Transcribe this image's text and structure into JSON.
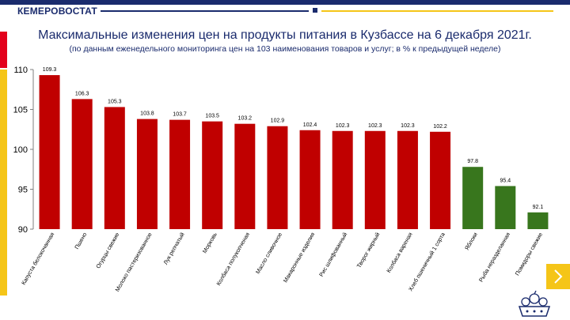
{
  "header": {
    "brand": "КЕМЕРОВОСТАТ",
    "colors": {
      "navy": "#1a2b6d",
      "yellow": "#f5c518",
      "red": "#e3001b"
    }
  },
  "title": "Максимальные изменения цен на продукты питания в Кузбассе на 6 декабря 2021г.",
  "subtitle": "(по данным еженедельного мониторинга цен на 103 наименования товаров и услуг; в % к предыдущей неделе)",
  "chart_data": {
    "type": "bar",
    "categories": [
      "Капуста белокочанная",
      "Пшено",
      "Огурцы свежие",
      "Молоко пастеризованное",
      "Лук репчатый",
      "Морковь",
      "Колбаса полукопченая",
      "Масло сливочное",
      "Макаронные изделия",
      "Рис шлифованный",
      "Творог жирный",
      "Колбаса вареная",
      "Хлеб пшеничный 1 сорта",
      "Яблоки",
      "Рыба неразделанная",
      "Помидоры свежие"
    ],
    "values": [
      109.3,
      106.3,
      105.3,
      103.8,
      103.7,
      103.5,
      103.2,
      102.9,
      102.4,
      102.3,
      102.3,
      102.3,
      102.2,
      97.8,
      95.4,
      92.1
    ],
    "ylim": [
      90,
      110
    ],
    "yticks": [
      90,
      95,
      100,
      105,
      110
    ],
    "colors": {
      "increase": "#c00000",
      "decrease": "#38761d"
    },
    "grid": false
  },
  "nav": {
    "next_icon": "chevron-right-icon"
  }
}
